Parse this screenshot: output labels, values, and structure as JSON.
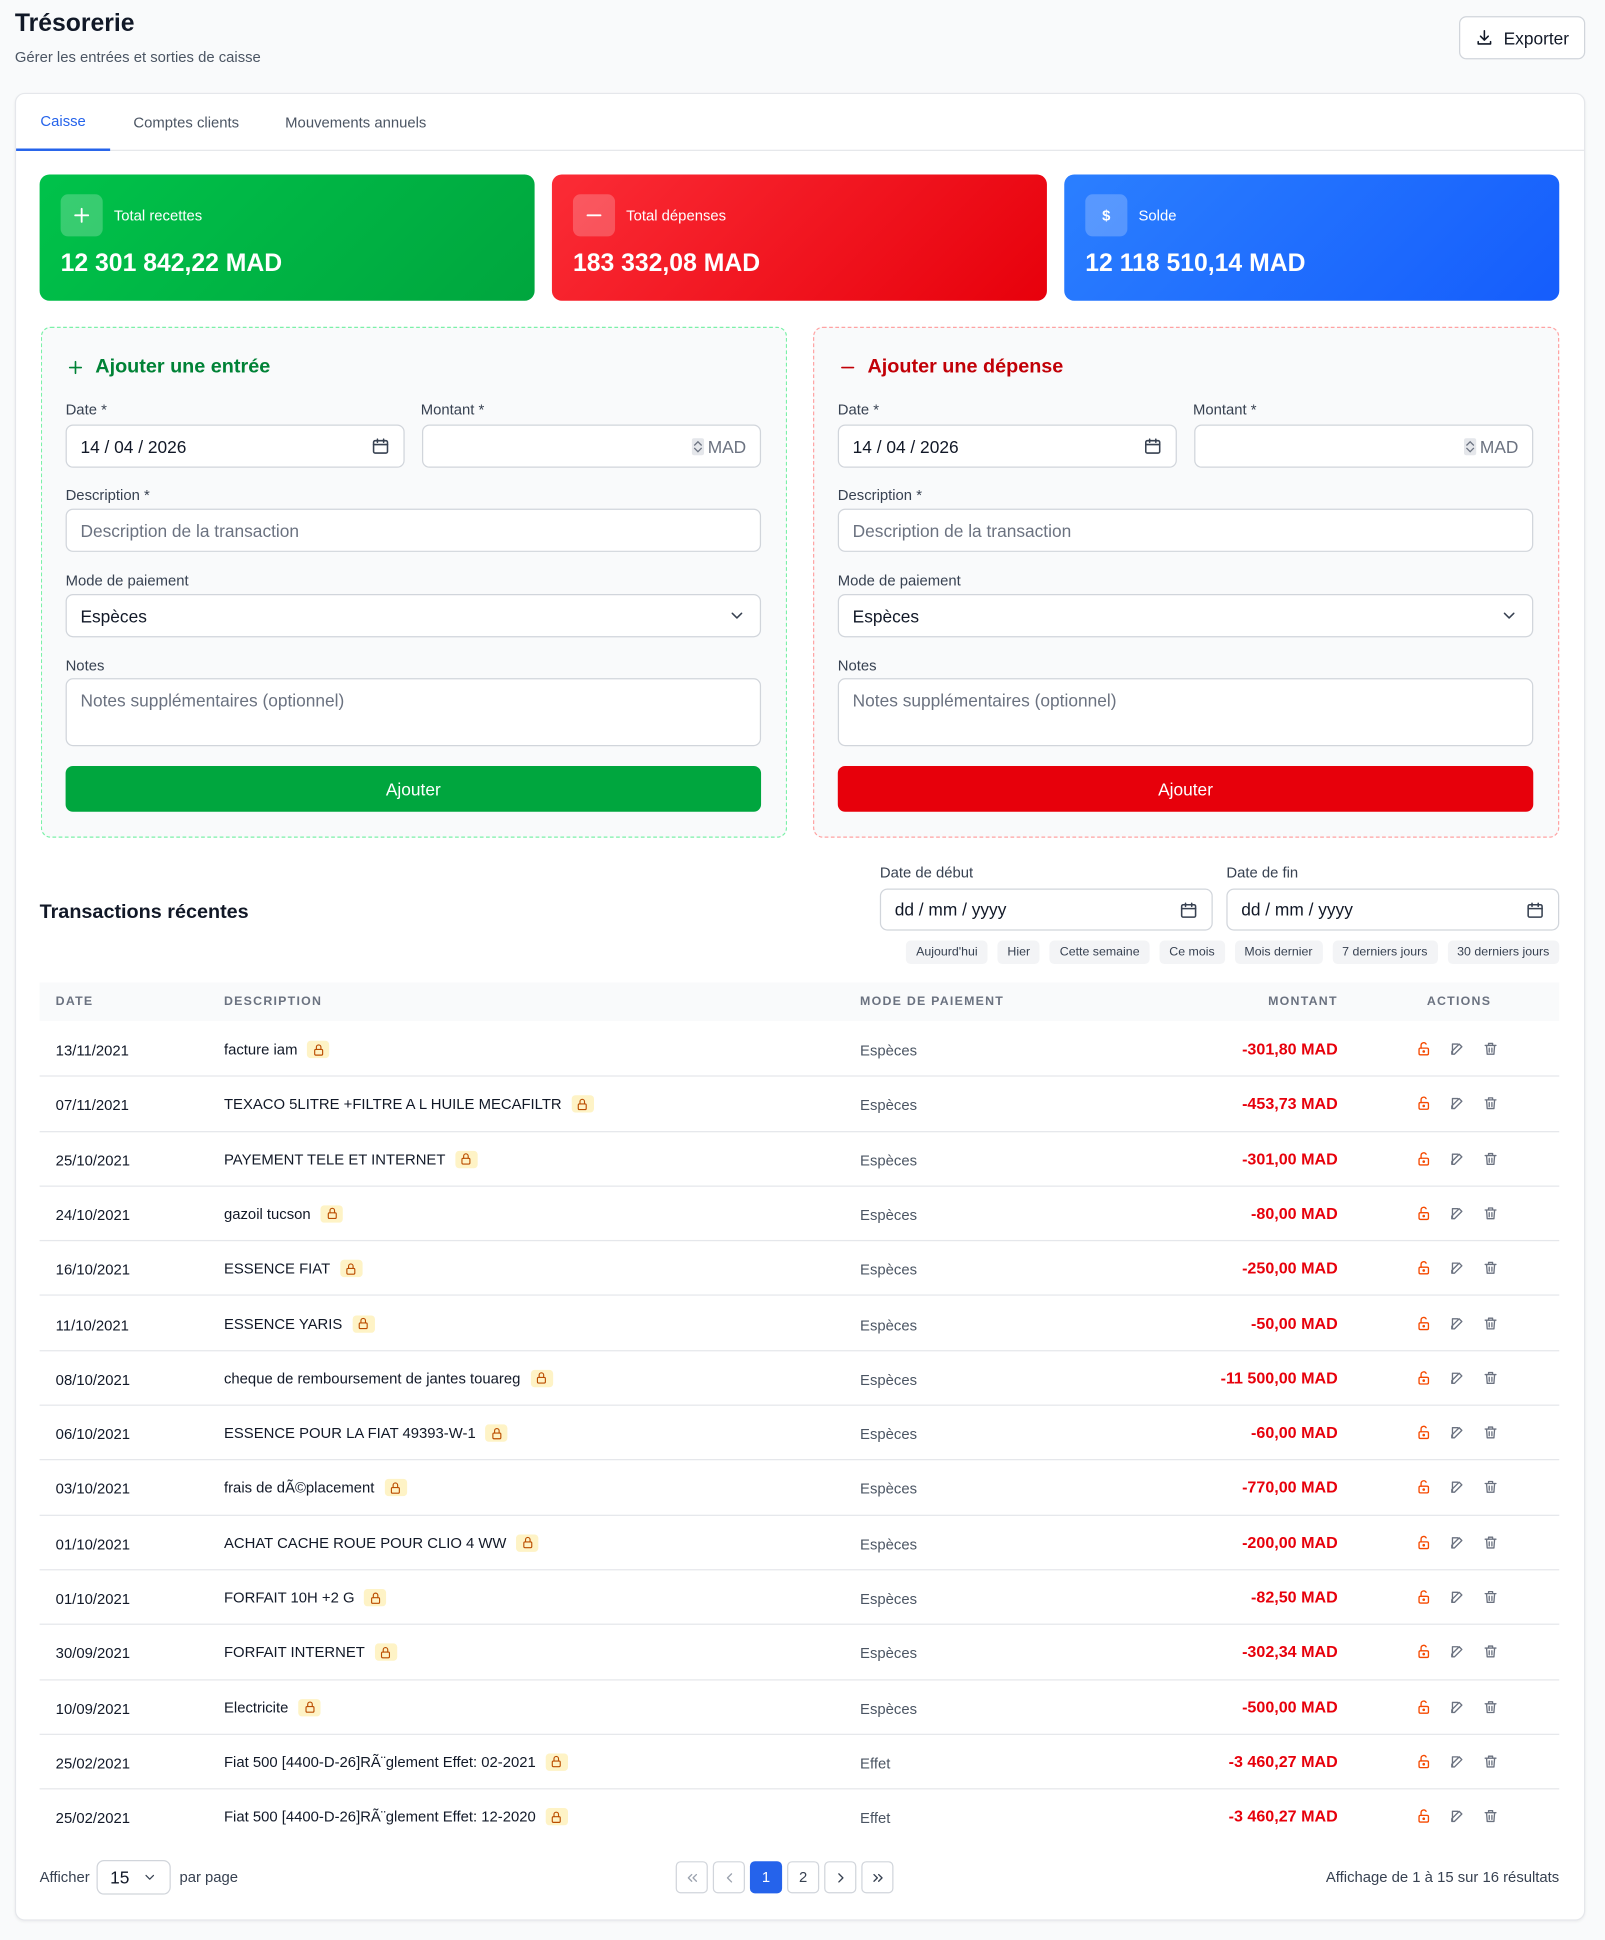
{
  "header": {
    "title": "Trésorerie",
    "subtitle": "Gérer les entrées et sorties de caisse",
    "export": "Exporter"
  },
  "tabs": [
    "Caisse",
    "Comptes clients",
    "Mouvements annuels"
  ],
  "cards": [
    {
      "label": "Total recettes",
      "value": "12 301 842,22 MAD"
    },
    {
      "label": "Total dépenses",
      "value": "183 332,08 MAD"
    },
    {
      "label": "Solde",
      "value": "12 118 510,14 MAD",
      "icon": "$"
    }
  ],
  "forms": [
    {
      "title": "Ajouter une entrée",
      "date_label": "Date *",
      "date": "14 / 04 / 2026",
      "amount_label": "Montant *",
      "currency": "MAD",
      "description_label": "Description *",
      "description_placeholder": "Description de la transaction",
      "payment_label": "Mode de paiement",
      "payment": "Espèces",
      "notes_label": "Notes",
      "notes_placeholder": "Notes supplémentaires (optionnel)",
      "submit": "Ajouter"
    },
    {
      "title": "Ajouter une dépense",
      "date_label": "Date *",
      "date": "14 / 04 / 2026",
      "amount_label": "Montant *",
      "currency": "MAD",
      "description_label": "Description *",
      "description_placeholder": "Description de la transaction",
      "payment_label": "Mode de paiement",
      "payment": "Espèces",
      "notes_label": "Notes",
      "notes_placeholder": "Notes supplémentaires (optionnel)",
      "submit": "Ajouter"
    }
  ],
  "transactions": {
    "title": "Transactions récentes",
    "start_label": "Date de début",
    "start_placeholder": "dd / mm / yyyy",
    "end_label": "Date de fin",
    "end_placeholder": "dd / mm / yyyy",
    "presets": [
      "Aujourd'hui",
      "Hier",
      "Cette semaine",
      "Ce mois",
      "Mois dernier",
      "7 derniers jours",
      "30 derniers jours"
    ],
    "columns": [
      "DATE",
      "DESCRIPTION",
      "MODE DE PAIEMENT",
      "MONTANT",
      "ACTIONS"
    ],
    "rows": [
      [
        "13/11/2021",
        "facture iam",
        "Espèces",
        "-301,80 MAD"
      ],
      [
        "07/11/2021",
        "TEXACO 5LITRE +FILTRE A L HUILE MECAFILTR",
        "Espèces",
        "-453,73 MAD"
      ],
      [
        "25/10/2021",
        "PAYEMENT TELE ET INTERNET",
        "Espèces",
        "-301,00 MAD"
      ],
      [
        "24/10/2021",
        "gazoil tucson",
        "Espèces",
        "-80,00 MAD"
      ],
      [
        "16/10/2021",
        "ESSENCE FIAT",
        "Espèces",
        "-250,00 MAD"
      ],
      [
        "11/10/2021",
        "ESSENCE YARIS",
        "Espèces",
        "-50,00 MAD"
      ],
      [
        "08/10/2021",
        "cheque de remboursement de jantes touareg",
        "Espèces",
        "-11 500,00 MAD"
      ],
      [
        "06/10/2021",
        "ESSENCE POUR LA FIAT 49393-W-1",
        "Espèces",
        "-60,00 MAD"
      ],
      [
        "03/10/2021",
        "frais de dÃ©placement",
        "Espèces",
        "-770,00 MAD"
      ],
      [
        "01/10/2021",
        "ACHAT CACHE ROUE POUR CLIO 4 WW",
        "Espèces",
        "-200,00 MAD"
      ],
      [
        "01/10/2021",
        "FORFAIT 10H +2 G",
        "Espèces",
        "-82,50 MAD"
      ],
      [
        "30/09/2021",
        "FORFAIT INTERNET",
        "Espèces",
        "-302,34 MAD"
      ],
      [
        "10/09/2021",
        "Electricite",
        "Espèces",
        "-500,00 MAD"
      ],
      [
        "25/02/2021",
        "Fiat 500 [4400-D-26]RÃ¨glement Effet: 02-2021",
        "Effet",
        "-3 460,27 MAD"
      ],
      [
        "25/02/2021",
        "Fiat 500 [4400-D-26]RÃ¨glement Effet: 12-2020",
        "Effet",
        "-3 460,27 MAD"
      ]
    ]
  },
  "pagination": {
    "show": "Afficher",
    "per_page": "15",
    "per_page_suffix": "par page",
    "pages": [
      "1",
      "2"
    ],
    "summary": "Affichage de 1 à 15 sur 16 résultats"
  }
}
